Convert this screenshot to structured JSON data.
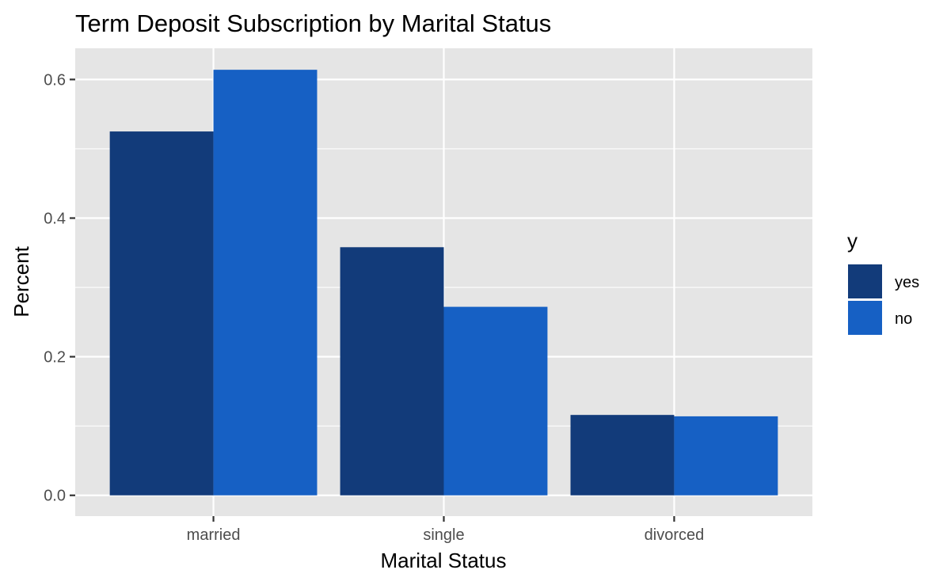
{
  "chart_data": {
    "type": "bar",
    "title": "Term Deposit Subscription by Marital Status",
    "xlabel": "Marital Status",
    "ylabel": "Percent",
    "categories": [
      "married",
      "single",
      "divorced"
    ],
    "series": [
      {
        "name": "yes",
        "color": "#123b7a",
        "values": [
          0.525,
          0.358,
          0.116
        ]
      },
      {
        "name": "no",
        "color": "#1660c4",
        "values": [
          0.614,
          0.272,
          0.114
        ]
      }
    ],
    "ylim": [
      -0.03,
      0.645
    ],
    "yticks": [
      0.0,
      0.2,
      0.4,
      0.6
    ],
    "ytick_labels": [
      "0.0",
      "0.2",
      "0.4",
      "0.6"
    ],
    "grid": true,
    "legend": {
      "title": "y",
      "placement": "right"
    }
  },
  "colors": {
    "panel_background": "#e5e5e5",
    "grid": "#ffffff",
    "tick_label": "#4d4d4d"
  }
}
